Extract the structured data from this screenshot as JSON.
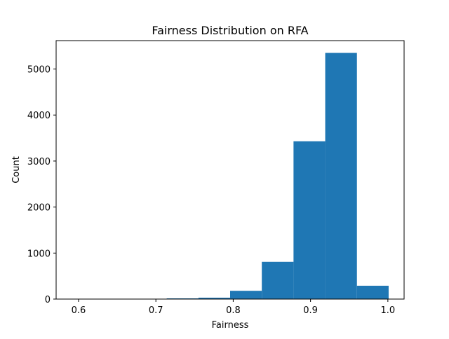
{
  "chart_data": {
    "type": "bar",
    "subtype": "histogram",
    "title": "Fairness Distribution on RFA",
    "xlabel": "Fairness",
    "ylabel": "Count",
    "bin_edges": [
      0.591,
      0.632,
      0.673,
      0.714,
      0.755,
      0.796,
      0.837,
      0.878,
      0.919,
      0.96,
      1.001
    ],
    "counts": [
      2,
      3,
      5,
      15,
      30,
      180,
      810,
      3430,
      5350,
      290
    ],
    "xlim": [
      0.571,
      1.021
    ],
    "ylim": [
      0,
      5617
    ],
    "xticks": [
      0.6,
      0.7,
      0.8,
      0.9,
      1.0
    ],
    "xtick_labels": [
      "0.6",
      "0.7",
      "0.8",
      "0.9",
      "1.0"
    ],
    "yticks": [
      0,
      1000,
      2000,
      3000,
      4000,
      5000
    ],
    "ytick_labels": [
      "0",
      "1000",
      "2000",
      "3000",
      "4000",
      "5000"
    ],
    "grid": false,
    "legend": "none",
    "bar_color": "#1f77b4"
  }
}
